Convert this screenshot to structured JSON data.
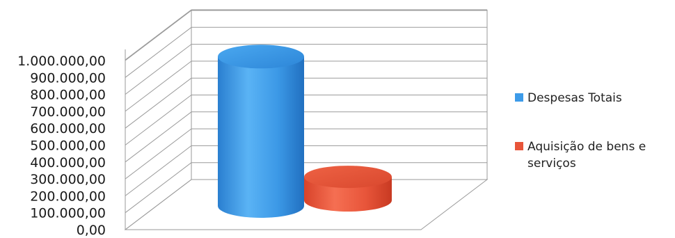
{
  "chart_data": {
    "type": "bar",
    "style": "3d-cylinder",
    "categories": [
      "Despesas Totais",
      "Aquisição de bens e serviços"
    ],
    "values": [
      950000,
      150000
    ],
    "colors": [
      "#3d9be9",
      "#e8553a"
    ],
    "ylim": [
      0,
      1000000
    ],
    "y_ticks": [
      "0,00",
      "100.000,00",
      "200.000,00",
      "300.000,00",
      "400.000,00",
      "500.000,00",
      "600.000,00",
      "700.000,00",
      "800.000,00",
      "900.000,00",
      "1.000.000,00"
    ],
    "grid": true,
    "legend": {
      "position": "right",
      "entries": [
        {
          "lines": [
            "Despesas Totais"
          ],
          "color": "#3d9be9"
        },
        {
          "lines": [
            "Aquisição de bens e",
            "serviços"
          ],
          "color": "#e8553a"
        }
      ]
    }
  }
}
